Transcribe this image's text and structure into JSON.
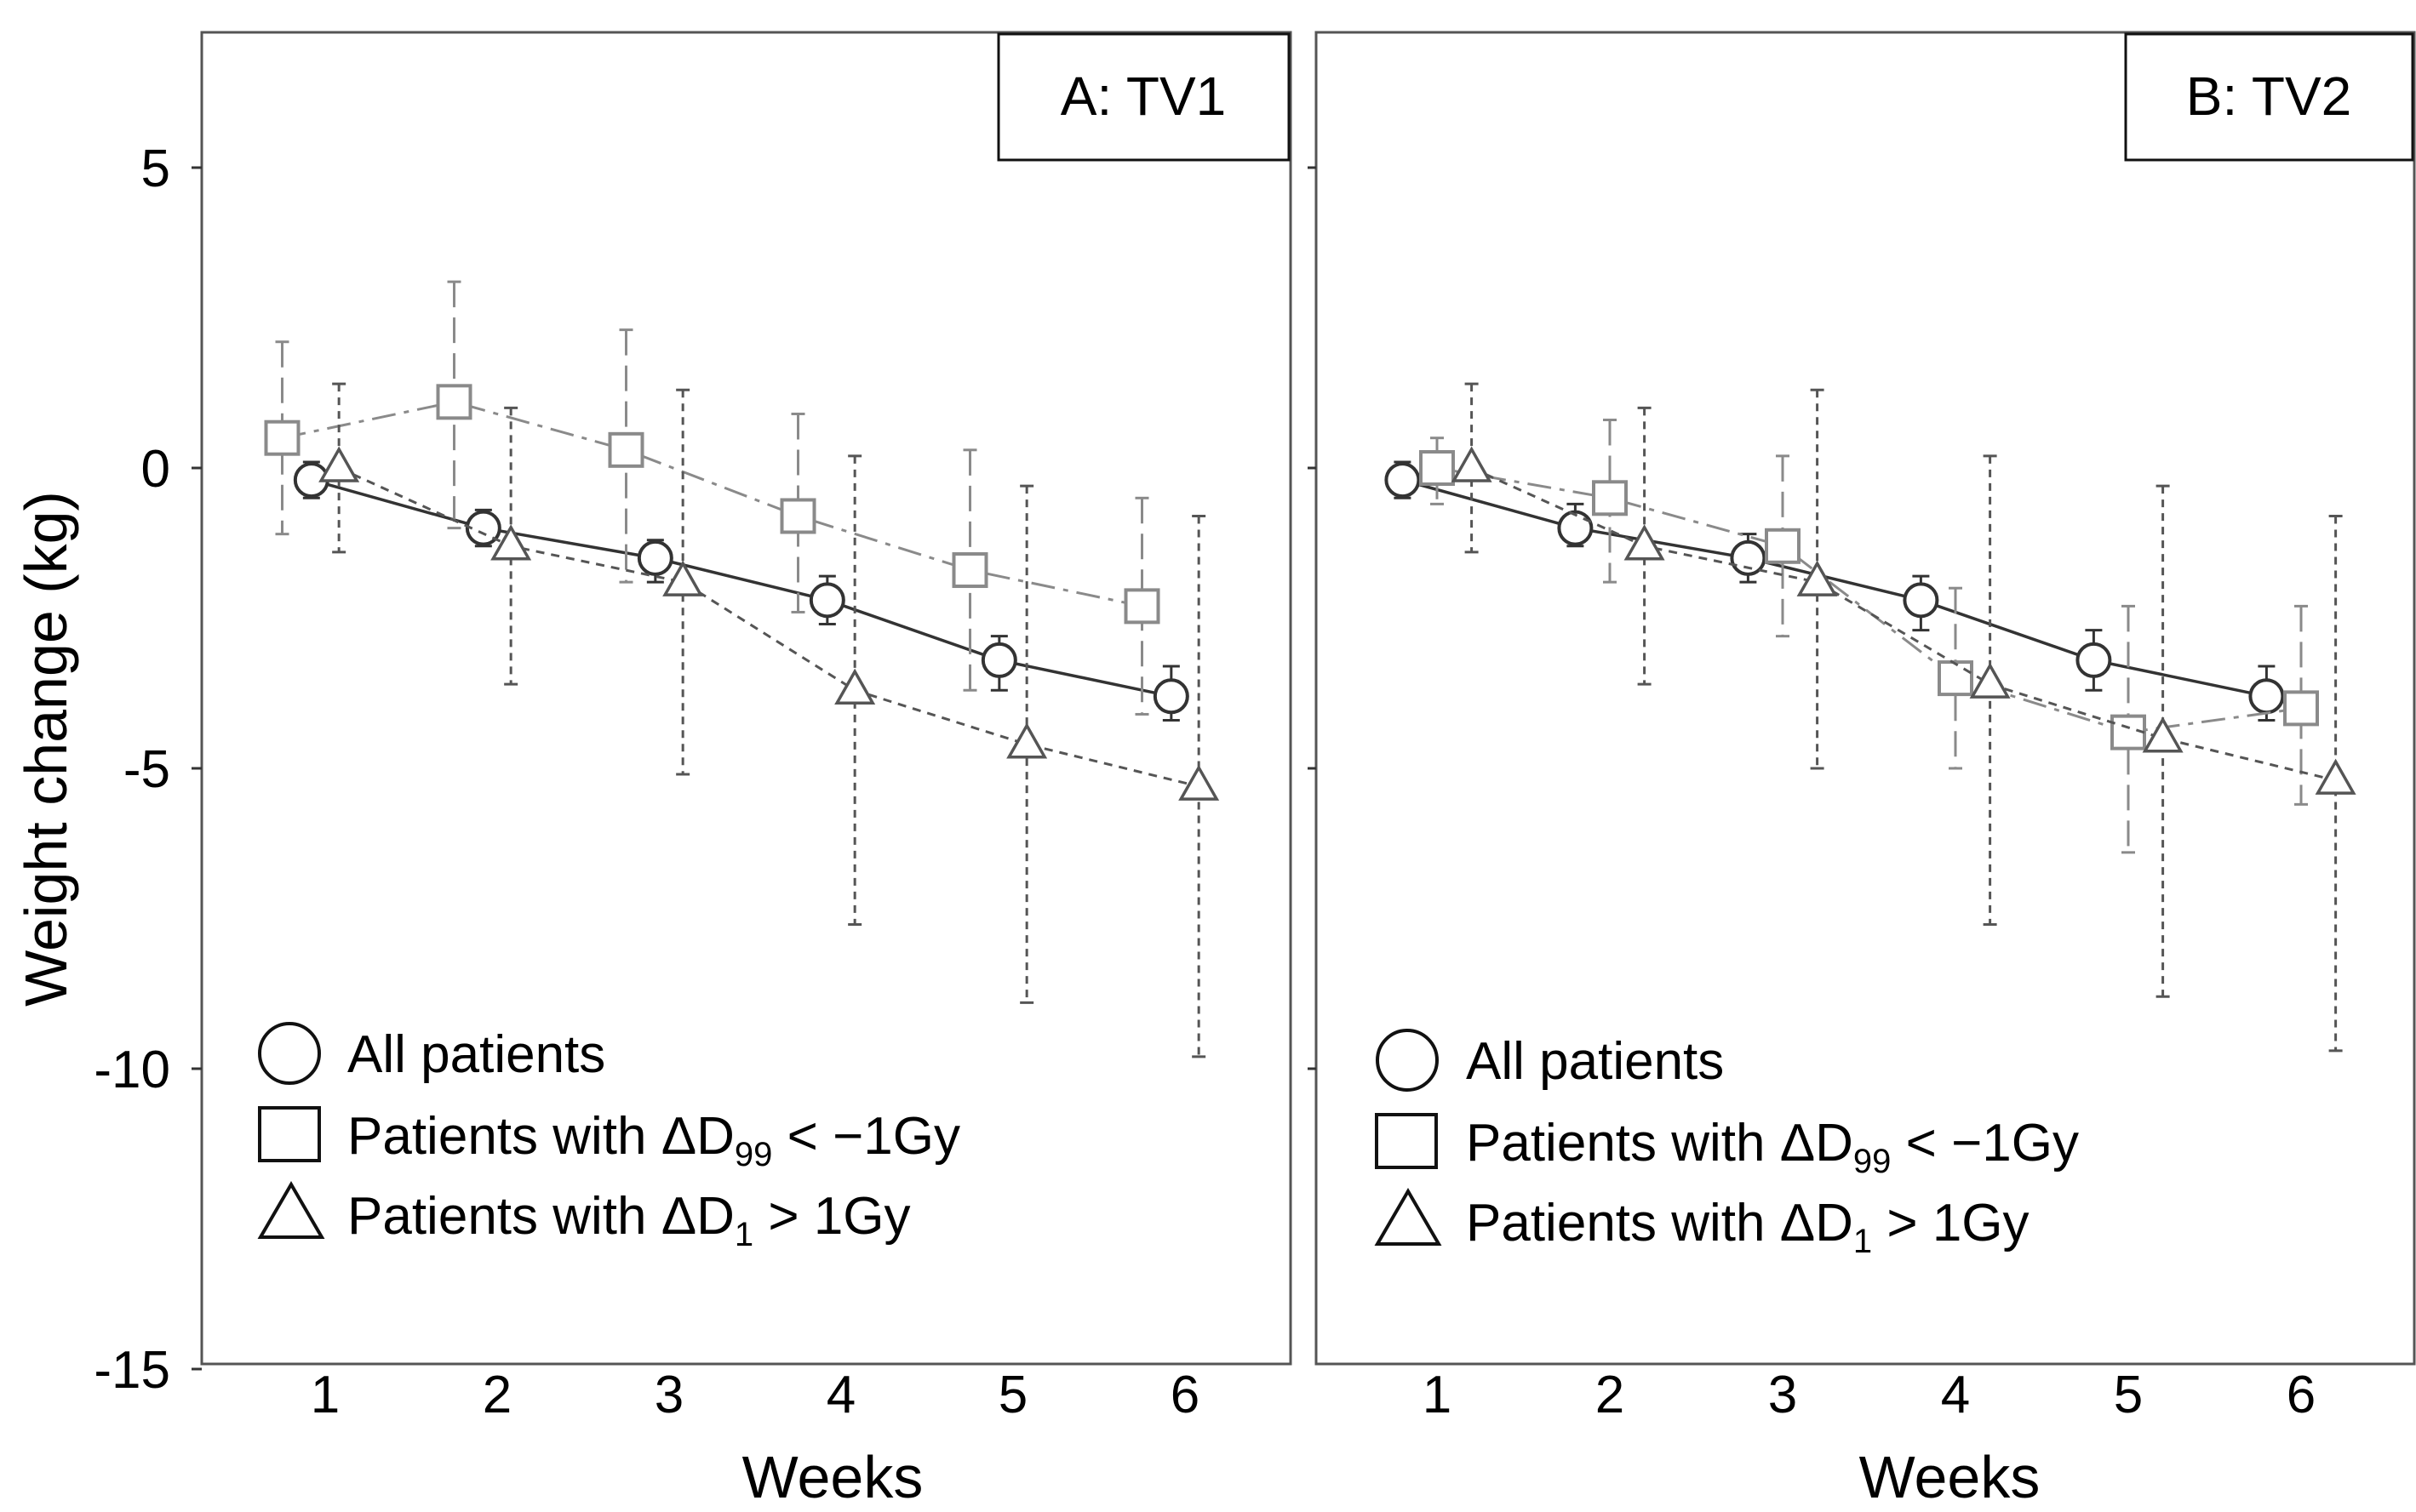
{
  "chart_data": [
    {
      "type": "line",
      "panel_title": "A: TV1",
      "xlabel": "Weeks",
      "ylabel": "Weight change (kg)",
      "xlim": [
        0.2,
        6.6
      ],
      "ylim": [
        -15,
        7.3
      ],
      "x_ticks": [
        "1",
        "2",
        "3",
        "4",
        "5",
        "6"
      ],
      "y_ticks": [
        "5",
        "0",
        "-5",
        "-10",
        "-15"
      ],
      "series": [
        {
          "name": "All patients",
          "marker": "circle",
          "line": "solid",
          "x": [
            0.92,
            1.92,
            2.92,
            3.92,
            4.92,
            5.92
          ],
          "y": [
            -0.2,
            -1.0,
            -1.5,
            -2.2,
            -3.2,
            -3.8
          ],
          "err_low": [
            -0.5,
            -1.3,
            -1.9,
            -2.6,
            -3.7,
            -4.2
          ],
          "err_high": [
            0.1,
            -0.7,
            -1.2,
            -1.8,
            -2.8,
            -3.3
          ]
        },
        {
          "name": "Patients with ΔD99 < −1Gy",
          "marker": "square",
          "line": "dashdot",
          "x": [
            0.75,
            1.75,
            2.75,
            3.75,
            4.75,
            5.75
          ],
          "y": [
            0.5,
            1.1,
            0.3,
            -0.8,
            -1.7,
            -2.3
          ],
          "err_low": [
            -1.1,
            -1.0,
            -1.9,
            -2.4,
            -3.7,
            -4.1
          ],
          "err_high": [
            2.1,
            3.1,
            2.3,
            0.9,
            0.3,
            -0.5
          ]
        },
        {
          "name": "Patients with ΔD1 > 1Gy",
          "marker": "triangle",
          "line": "dashed",
          "x": [
            1.08,
            2.08,
            3.08,
            4.08,
            5.08,
            6.08
          ],
          "y": [
            0.0,
            -1.3,
            -1.9,
            -3.7,
            -4.6,
            -5.3
          ],
          "err_low": [
            -1.4,
            -3.6,
            -5.1,
            -7.6,
            -8.9,
            -9.8
          ],
          "err_high": [
            1.4,
            1.0,
            1.3,
            0.2,
            -0.3,
            -0.8
          ]
        }
      ]
    },
    {
      "type": "line",
      "panel_title": "B: TV2",
      "xlabel": "Weeks",
      "ylabel": "",
      "xlim": [
        0.2,
        6.6
      ],
      "ylim": [
        -15,
        7.3
      ],
      "x_ticks": [
        "1",
        "2",
        "3",
        "4",
        "5",
        "6"
      ],
      "y_ticks": [],
      "series": [
        {
          "name": "All patients",
          "marker": "circle",
          "line": "solid",
          "x": [
            0.8,
            1.8,
            2.8,
            3.8,
            4.8,
            5.8
          ],
          "y": [
            -0.2,
            -1.0,
            -1.5,
            -2.2,
            -3.2,
            -3.8
          ],
          "err_low": [
            -0.5,
            -1.3,
            -1.9,
            -2.7,
            -3.7,
            -4.2
          ],
          "err_high": [
            0.1,
            -0.6,
            -1.1,
            -1.8,
            -2.7,
            -3.3
          ]
        },
        {
          "name": "Patients with ΔD99 < −1Gy",
          "marker": "square",
          "line": "dashdot",
          "x": [
            1.0,
            2.0,
            3.0,
            4.0,
            5.0,
            6.0
          ],
          "y": [
            0.0,
            -0.5,
            -1.3,
            -3.5,
            -4.4,
            -4.0
          ],
          "err_low": [
            -0.6,
            -1.9,
            -2.8,
            -5.0,
            -6.4,
            -5.6
          ],
          "err_high": [
            0.5,
            0.8,
            0.2,
            -2.0,
            -2.3,
            -2.3
          ]
        },
        {
          "name": "Patients with ΔD1 > 1Gy",
          "marker": "triangle",
          "line": "dashed",
          "x": [
            1.2,
            2.2,
            3.2,
            4.2,
            5.2,
            6.2
          ],
          "y": [
            0.0,
            -1.3,
            -1.9,
            -3.6,
            -4.5,
            -5.2
          ],
          "err_low": [
            -1.4,
            -3.6,
            -5.0,
            -7.6,
            -8.8,
            -9.7
          ],
          "err_high": [
            1.4,
            1.0,
            1.3,
            0.2,
            -0.3,
            -0.8
          ]
        }
      ]
    }
  ],
  "legend": {
    "all_patients": "All patients",
    "d99_prefix": "Patients with ΔD",
    "d99_sub": "99",
    "d99_suffix": " < −1Gy",
    "d1_prefix": "Patients with ΔD",
    "d1_sub": "1",
    "d1_suffix": " > 1Gy"
  },
  "colors": {
    "all_patients": "#333333",
    "d99": "#8a8a8a",
    "d1": "#555555",
    "frame": "#555555"
  }
}
